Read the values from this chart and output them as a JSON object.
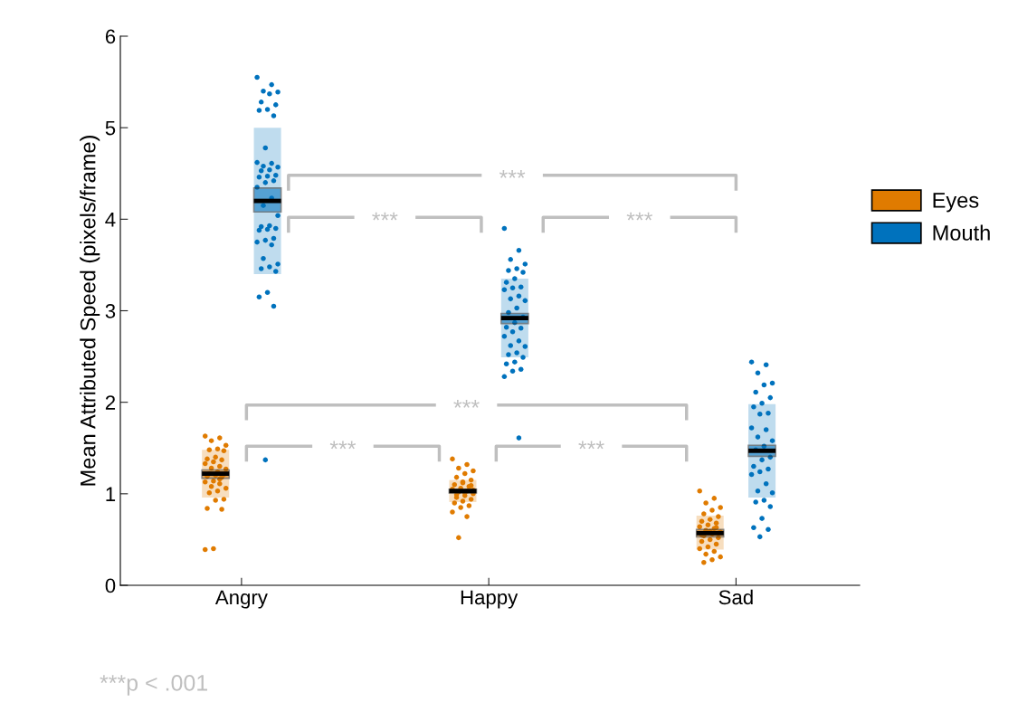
{
  "chart_data": {
    "type": "scatter",
    "categories": [
      "Angry",
      "Happy",
      "Sad"
    ],
    "ylabel": "Mean Attributed Speed (pixels/frame)",
    "ylim": [
      0,
      6
    ],
    "yticks": [
      0,
      1,
      2,
      3,
      4,
      5,
      6
    ],
    "grid": false,
    "legend": "right",
    "marker": "circle",
    "series": [
      {
        "name": "Eyes",
        "type": "box",
        "color": "#e07b00",
        "boxes": [
          {
            "low": 0.96,
            "q1": 1.17,
            "median": 1.22,
            "q3": 1.26,
            "high": 1.48
          },
          {
            "low": 0.91,
            "q1": 1.01,
            "median": 1.03,
            "q3": 1.05,
            "high": 1.15
          },
          {
            "low": 0.39,
            "q1": 0.53,
            "median": 0.57,
            "q3": 0.61,
            "high": 0.76
          }
        ]
      },
      {
        "name": "Mouth",
        "type": "box",
        "color": "#0072bd",
        "boxes": [
          {
            "low": 3.4,
            "q1": 4.08,
            "median": 4.2,
            "q3": 4.34,
            "high": 5.0
          },
          {
            "low": 2.49,
            "q1": 2.86,
            "median": 2.92,
            "q3": 2.97,
            "high": 3.35
          },
          {
            "low": 0.96,
            "q1": 1.41,
            "median": 1.47,
            "q3": 1.53,
            "high": 1.98
          }
        ]
      },
      {
        "color": "#e07b00",
        "x": [
          "Angry",
          "Angry",
          "Angry",
          "Angry",
          "Angry",
          "Angry",
          "Angry",
          "Angry",
          "Angry",
          "Angry",
          "Angry",
          "Angry",
          "Angry",
          "Angry",
          "Angry",
          "Angry",
          "Angry",
          "Angry",
          "Angry",
          "Angry",
          "Angry",
          "Angry",
          "Angry",
          "Angry",
          "Angry",
          "Angry",
          "Angry",
          "Angry",
          "Angry",
          "Angry",
          "Angry",
          "Angry",
          "Angry",
          "Angry",
          "Angry",
          "Happy",
          "Happy",
          "Happy",
          "Happy",
          "Happy",
          "Happy",
          "Happy",
          "Happy",
          "Happy",
          "Happy",
          "Happy",
          "Happy",
          "Happy",
          "Happy",
          "Happy",
          "Happy",
          "Happy",
          "Happy",
          "Happy",
          "Happy",
          "Happy",
          "Happy",
          "Happy",
          "Happy",
          "Happy",
          "Happy",
          "Happy",
          "Happy",
          "Happy",
          "Happy",
          "Sad",
          "Sad",
          "Sad",
          "Sad",
          "Sad",
          "Sad",
          "Sad",
          "Sad",
          "Sad",
          "Sad",
          "Sad",
          "Sad",
          "Sad",
          "Sad",
          "Sad",
          "Sad",
          "Sad",
          "Sad",
          "Sad",
          "Sad",
          "Sad",
          "Sad",
          "Sad",
          "Sad",
          "Sad",
          "Sad",
          "Sad",
          "Sad",
          "Sad",
          "Sad",
          "Sad",
          "Sad"
        ],
        "values": [
          1.63,
          1.61,
          1.58,
          1.53,
          1.49,
          1.48,
          1.47,
          1.4,
          1.38,
          1.37,
          1.35,
          1.33,
          1.3,
          1.28,
          1.27,
          1.24,
          1.22,
          1.21,
          1.2,
          1.19,
          1.18,
          1.14,
          1.13,
          1.11,
          1.08,
          1.06,
          1.03,
          1.01,
          0.94,
          0.93,
          0.84,
          0.83,
          0.4,
          0.39,
          1.16,
          1.38,
          1.32,
          1.28,
          1.25,
          1.22,
          1.18,
          1.15,
          1.12,
          1.1,
          1.08,
          1.06,
          1.05,
          1.03,
          1.02,
          1.0,
          0.98,
          0.96,
          0.94,
          0.92,
          0.9,
          0.87,
          0.85,
          0.8,
          0.75,
          0.52,
          1.04,
          1.01,
          0.99,
          1.09,
          1.13,
          1.03,
          0.95,
          0.9,
          0.85,
          0.82,
          0.78,
          0.75,
          0.72,
          0.7,
          0.68,
          0.66,
          0.64,
          0.62,
          0.6,
          0.58,
          0.56,
          0.54,
          0.52,
          0.5,
          0.48,
          0.45,
          0.42,
          0.4,
          0.37,
          0.34,
          0.31,
          0.28,
          0.25,
          0.57,
          0.59,
          0.55,
          0.63
        ]
      },
      {
        "color": "#0072bd",
        "x": [
          "Angry",
          "Angry",
          "Angry",
          "Angry",
          "Angry",
          "Angry",
          "Angry",
          "Angry",
          "Angry",
          "Angry",
          "Angry",
          "Angry",
          "Angry",
          "Angry",
          "Angry",
          "Angry",
          "Angry",
          "Angry",
          "Angry",
          "Angry",
          "Angry",
          "Angry",
          "Angry",
          "Angry",
          "Angry",
          "Angry",
          "Angry",
          "Angry",
          "Angry",
          "Angry",
          "Angry",
          "Angry",
          "Angry",
          "Angry",
          "Angry",
          "Angry",
          "Angry",
          "Angry",
          "Angry",
          "Angry",
          "Angry",
          "Angry",
          "Angry",
          "Happy",
          "Happy",
          "Happy",
          "Happy",
          "Happy",
          "Happy",
          "Happy",
          "Happy",
          "Happy",
          "Happy",
          "Happy",
          "Happy",
          "Happy",
          "Happy",
          "Happy",
          "Happy",
          "Happy",
          "Happy",
          "Happy",
          "Happy",
          "Happy",
          "Happy",
          "Happy",
          "Happy",
          "Happy",
          "Happy",
          "Happy",
          "Happy",
          "Happy",
          "Happy",
          "Happy",
          "Happy",
          "Happy",
          "Happy",
          "Happy",
          "Sad",
          "Sad",
          "Sad",
          "Sad",
          "Sad",
          "Sad",
          "Sad",
          "Sad",
          "Sad",
          "Sad",
          "Sad",
          "Sad",
          "Sad",
          "Sad",
          "Sad",
          "Sad",
          "Sad",
          "Sad",
          "Sad",
          "Sad",
          "Sad",
          "Sad",
          "Sad",
          "Sad",
          "Sad",
          "Sad",
          "Sad",
          "Sad",
          "Sad",
          "Sad",
          "Sad",
          "Sad",
          "Sad",
          "Angry"
        ],
        "values": [
          5.55,
          5.47,
          5.4,
          5.39,
          5.37,
          5.28,
          5.25,
          5.2,
          5.19,
          5.13,
          4.78,
          4.62,
          4.61,
          4.58,
          4.57,
          4.54,
          4.53,
          4.48,
          4.47,
          4.46,
          4.42,
          4.4,
          4.35,
          4.23,
          4.15,
          4.04,
          3.93,
          3.92,
          3.9,
          3.89,
          3.88,
          3.79,
          3.77,
          3.75,
          3.72,
          3.57,
          3.51,
          3.48,
          3.46,
          3.43,
          3.2,
          3.15,
          3.05,
          3.9,
          3.66,
          3.56,
          3.51,
          3.46,
          3.44,
          3.42,
          3.35,
          3.31,
          3.26,
          3.25,
          3.23,
          3.16,
          3.13,
          3.11,
          3.03,
          2.98,
          2.93,
          2.87,
          2.82,
          2.81,
          2.77,
          2.72,
          2.67,
          2.62,
          2.61,
          2.54,
          2.52,
          2.49,
          2.44,
          2.42,
          2.36,
          2.34,
          2.28,
          1.61,
          2.44,
          2.41,
          2.32,
          2.21,
          2.19,
          2.11,
          2.05,
          1.99,
          1.95,
          1.88,
          1.87,
          1.72,
          1.7,
          1.62,
          1.58,
          1.52,
          1.48,
          1.4,
          1.37,
          1.3,
          1.27,
          1.24,
          1.21,
          1.11,
          1.03,
          1.01,
          0.93,
          0.91,
          0.86,
          0.73,
          0.63,
          0.61,
          0.53,
          1.37
        ]
      }
    ],
    "annotations": [
      "***",
      "***",
      "***",
      "***",
      "***",
      "***",
      "***p < .001"
    ]
  }
}
